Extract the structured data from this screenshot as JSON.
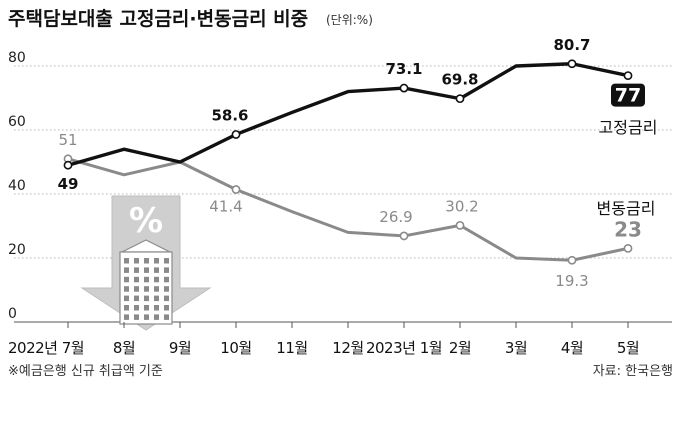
{
  "chart_data": {
    "type": "line",
    "title": "주택담보대출 고정금리·변동금리 비중",
    "unit": "(단위:%)",
    "categories": [
      "2022년 7월",
      "8월",
      "9월",
      "10월",
      "11월",
      "12월",
      "2023년 1월",
      "2월",
      "3월",
      "4월",
      "5월"
    ],
    "ylim": [
      0,
      80
    ],
    "yticks": [
      0,
      20,
      40,
      60,
      80
    ],
    "series": [
      {
        "name": "고정금리",
        "color": "#111111",
        "values": [
          49,
          54,
          50,
          58.6,
          65.5,
          72,
          73.1,
          69.8,
          80,
          80.7,
          77
        ],
        "labels": [
          "49",
          "",
          "",
          "58.6",
          "",
          "",
          "73.1",
          "69.8",
          "",
          "80.7",
          "77"
        ],
        "markers": [
          true,
          false,
          false,
          true,
          false,
          false,
          true,
          true,
          false,
          true,
          true
        ]
      },
      {
        "name": "변동금리",
        "color": "#8a8a8a",
        "values": [
          51,
          46,
          50,
          41.4,
          34.5,
          28,
          26.9,
          30.2,
          20,
          19.3,
          23
        ],
        "labels": [
          "51",
          "",
          "",
          "41.4",
          "",
          "",
          "26.9",
          "30.2",
          "",
          "19.3",
          "23"
        ],
        "markers": [
          true,
          false,
          false,
          true,
          false,
          false,
          true,
          true,
          false,
          true,
          true
        ]
      }
    ],
    "illustration_text": "%",
    "note": "※예금은행 신규 취급액 기준",
    "source": "자료: 한국은행"
  }
}
